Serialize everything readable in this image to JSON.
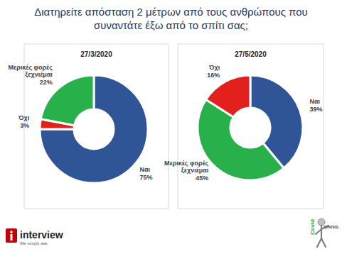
{
  "page": {
    "title": "Διατηρείτε απόσταση 2 μέτρων από τους ανθρώπους που συναντάτε έξω από το σπίτι σας;",
    "brand": "interview",
    "tagline": "We simply ask",
    "logo": [
      "Covid",
      "CONTROL"
    ]
  },
  "chart_data": [
    {
      "type": "pie",
      "title": "27/3/2020",
      "categories": [
        "Ναι",
        "Όχι",
        "Μερικές φορές ξεχνιέμαι"
      ],
      "values": [
        75,
        3,
        22
      ],
      "value_labels": [
        "75%",
        "3%",
        "22%"
      ],
      "colors": [
        "#2f5597",
        "#e3211c",
        "#28b04b"
      ],
      "data_labels": true
    },
    {
      "type": "pie",
      "title": "27/5/2020",
      "categories": [
        "Ναι",
        "Μερικές φορές ξεχνιέμαι",
        "Όχι"
      ],
      "values": [
        39,
        45,
        16
      ],
      "value_labels": [
        "39%",
        "45%",
        "16%"
      ],
      "colors": [
        "#2f5597",
        "#28b04b",
        "#e3211c"
      ],
      "data_labels": true
    }
  ]
}
